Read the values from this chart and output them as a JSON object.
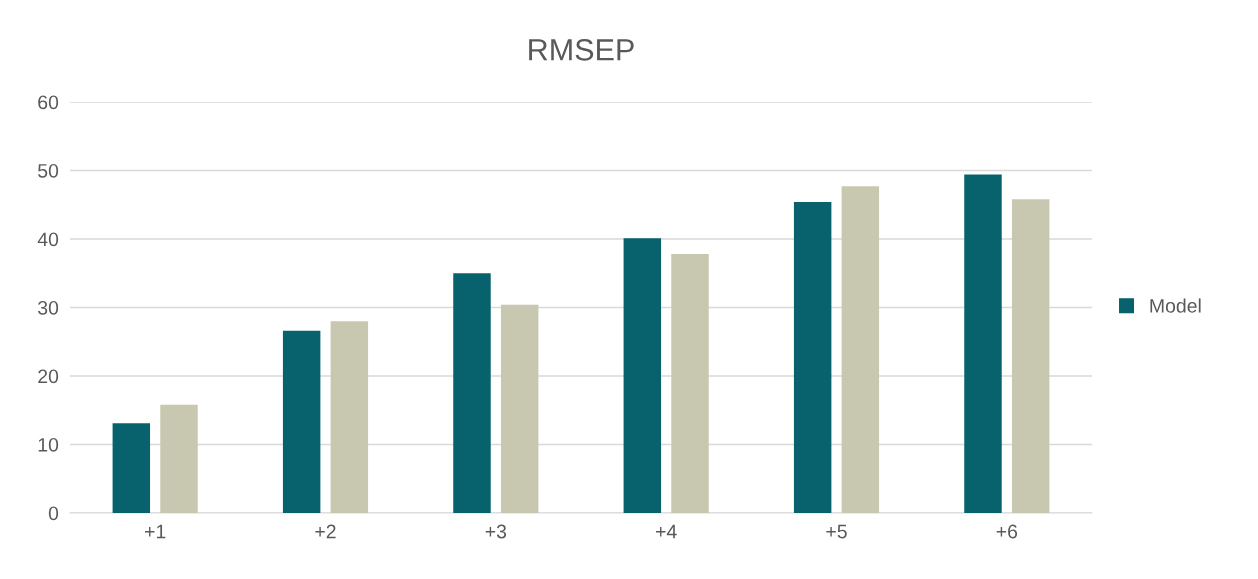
{
  "chart_data": {
    "type": "bar",
    "title": "RMSEP",
    "categories": [
      "+1",
      "+2",
      "+3",
      "+4",
      "+5",
      "+6"
    ],
    "series": [
      {
        "name": "Model",
        "color": "#07626d",
        "values": [
          13.1,
          26.6,
          35.0,
          40.1,
          45.4,
          49.4
        ]
      },
      {
        "color": "#c8c8b1",
        "values": [
          15.8,
          28.0,
          30.4,
          37.8,
          47.7,
          45.8
        ]
      }
    ],
    "ylim": [
      0,
      60
    ],
    "yticks": [
      0,
      10,
      20,
      30,
      40,
      50,
      60
    ],
    "grid": "y",
    "legend": "right"
  }
}
